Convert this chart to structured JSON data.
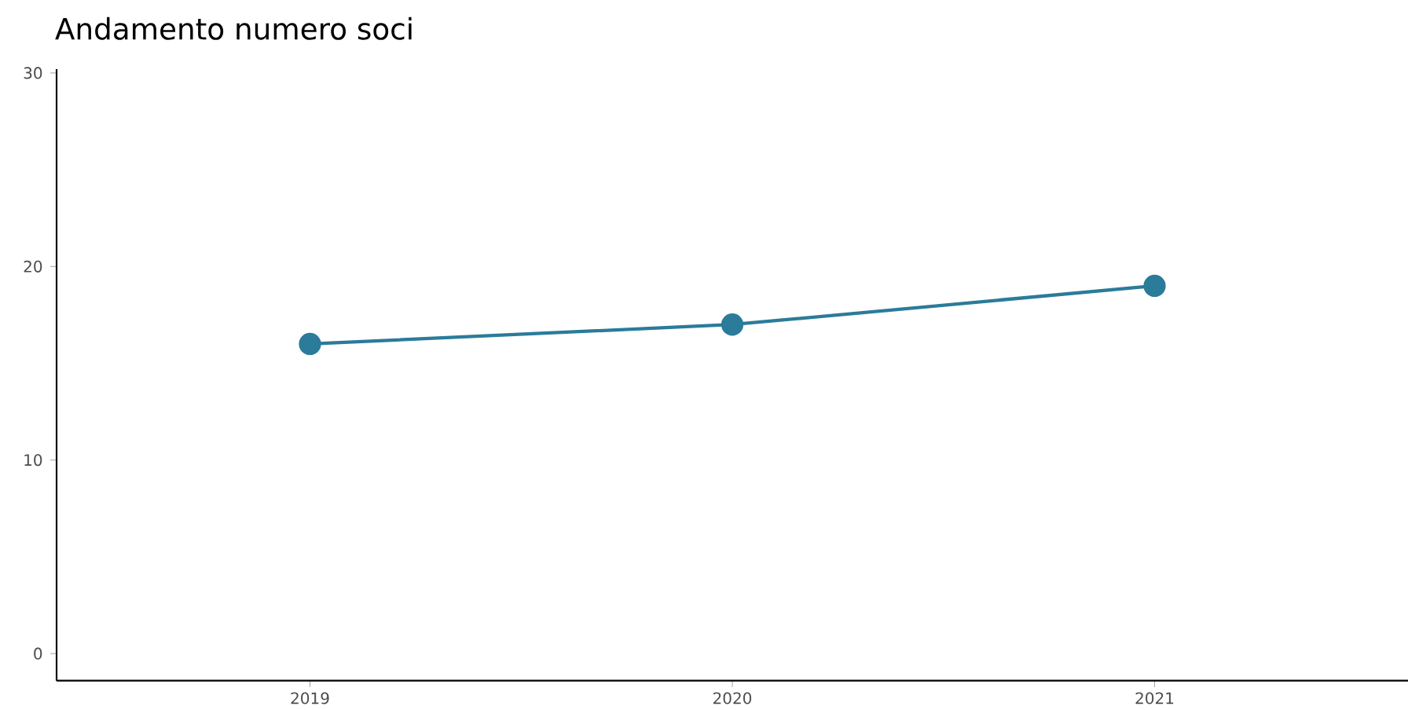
{
  "chart_data": {
    "type": "line",
    "title": "Andamento numero soci",
    "x": [
      2019,
      2020,
      2021
    ],
    "series": [
      {
        "color": "#2b7b9a",
        "values": [
          16,
          17,
          19
        ]
      }
    ],
    "xlim": [
      2018.4,
      2021.6
    ],
    "xticks": [
      2019,
      2020,
      2021
    ],
    "ylim": [
      -1.4,
      30.2
    ],
    "yticks": [
      0,
      10,
      20,
      30
    ],
    "marker": "circle"
  }
}
